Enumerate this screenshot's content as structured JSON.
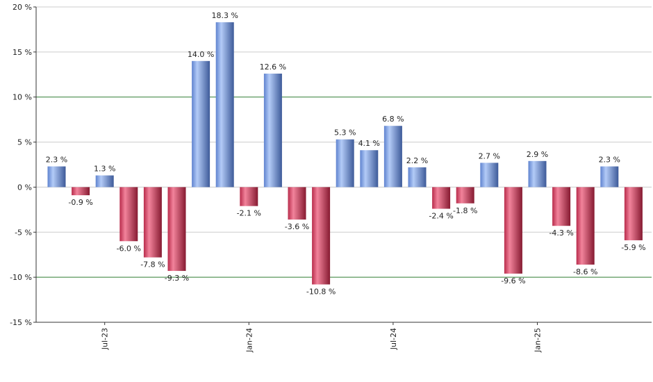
{
  "chart_data": {
    "type": "bar",
    "title": "",
    "xlabel": "",
    "ylabel": "",
    "ylim": [
      -15,
      20
    ],
    "yticks": [
      -15,
      -10,
      -5,
      0,
      5,
      10,
      15,
      20
    ],
    "ytick_labels": [
      "-15 %",
      "-10 %",
      "-5 %",
      "0 %",
      "5 %",
      "10 %",
      "15 %",
      "20 %"
    ],
    "highlight_gridlines": [
      10,
      -10
    ],
    "grid": true,
    "legend": "none",
    "categories": [
      "2023-05",
      "2023-06",
      "2023-07",
      "2023-08",
      "2023-09",
      "2023-10",
      "2023-11",
      "2023-12",
      "2024-01",
      "2024-02",
      "2024-03",
      "2024-04",
      "2024-05",
      "2024-06",
      "2024-07",
      "2024-08",
      "2024-09",
      "2024-10",
      "2024-11",
      "2024-12",
      "2025-01",
      "2025-02",
      "2025-03",
      "2025-04",
      "2025-05"
    ],
    "values": [
      2.3,
      -0.9,
      1.3,
      -6.0,
      -7.8,
      -9.3,
      14.0,
      18.3,
      -2.1,
      12.6,
      -3.6,
      -10.8,
      5.3,
      4.1,
      6.8,
      2.2,
      -2.4,
      -1.8,
      2.7,
      -9.6,
      2.9,
      -4.3,
      -8.6,
      2.3,
      -5.9
    ],
    "value_labels": [
      "2.3 %",
      "-0.9 %",
      "1.3 %",
      "-6.0 %",
      "-7.8 %",
      "-9.3 %",
      "14.0 %",
      "18.3 %",
      "-2.1 %",
      "12.6 %",
      "-3.6 %",
      "-10.8 %",
      "5.3 %",
      "4.1 %",
      "6.8 %",
      "2.2 %",
      "-2.4 %",
      "-1.8 %",
      "2.7 %",
      "-9.6 %",
      "2.9 %",
      "-4.3 %",
      "-8.6 %",
      "2.3 %",
      "-5.9 %"
    ],
    "xtick_labels": [
      {
        "index": 2,
        "label": "Jul-23"
      },
      {
        "index": 8,
        "label": "Jan-24"
      },
      {
        "index": 14,
        "label": "Jul-24"
      },
      {
        "index": 20,
        "label": "Jan-25"
      }
    ],
    "colors": {
      "positive_light": "#a9c4f5",
      "positive_mid": "#6d92dc",
      "positive_dark": "#3f5c9e",
      "negative_light": "#f07a94",
      "negative_mid": "#d0385a",
      "negative_dark": "#8a1c33",
      "grid": "#cccccc",
      "highlight_grid": "#2e7d32",
      "axis": "#333333"
    }
  }
}
